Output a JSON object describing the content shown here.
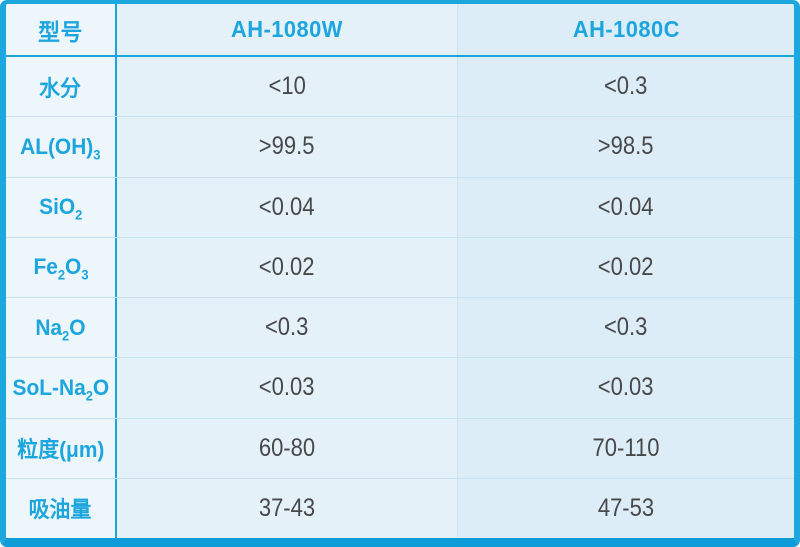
{
  "colors": {
    "accent_cyan": "#1ca7de",
    "bottom_border": "#0e9cd8",
    "header_text": "#1ca6dd",
    "label_text": "#1ca6dd",
    "value_text": "#48484a",
    "col1_bg": "#ecf6fb",
    "col2_bg": "#e4f1f9",
    "col3_bg": "#dcedf7",
    "row_divider": "#c8e2ef",
    "light_column_divider": "#cfe6f2"
  },
  "table": {
    "header": {
      "model_label": "型号",
      "columns": [
        "AH-1080W",
        "AH-1080C"
      ]
    },
    "rows": [
      {
        "label": [
          {
            "t": "水分"
          }
        ],
        "values": [
          "<10",
          "<0.3"
        ]
      },
      {
        "label": [
          {
            "t": "AL(OH)"
          },
          {
            "t": "3",
            "sub": true
          }
        ],
        "values": [
          ">99.5",
          ">98.5"
        ]
      },
      {
        "label": [
          {
            "t": "SiO"
          },
          {
            "t": "2",
            "sub": true
          }
        ],
        "values": [
          "<0.04",
          "<0.04"
        ]
      },
      {
        "label": [
          {
            "t": "Fe"
          },
          {
            "t": "2",
            "sub": true
          },
          {
            "t": "O"
          },
          {
            "t": "3",
            "sub": true
          }
        ],
        "values": [
          "<0.02",
          "<0.02"
        ]
      },
      {
        "label": [
          {
            "t": "Na"
          },
          {
            "t": "2",
            "sub": true
          },
          {
            "t": "O"
          }
        ],
        "values": [
          "<0.3",
          "<0.3"
        ]
      },
      {
        "label": [
          {
            "t": "SoL-Na"
          },
          {
            "t": "2",
            "sub": true
          },
          {
            "t": "O"
          }
        ],
        "values": [
          "<0.03",
          "<0.03"
        ]
      },
      {
        "label": [
          {
            "t": "粒度(μm)"
          }
        ],
        "values": [
          "60-80",
          "70-110"
        ]
      },
      {
        "label": [
          {
            "t": "吸油量"
          }
        ],
        "values": [
          "37-43",
          "47-53"
        ]
      }
    ]
  },
  "chart_data": {
    "type": "table",
    "title": "",
    "columns": [
      "型号",
      "AH-1080W",
      "AH-1080C"
    ],
    "rows": [
      [
        "水分",
        "<10",
        "<0.3"
      ],
      [
        "AL(OH)₃",
        ">99.5",
        ">98.5"
      ],
      [
        "SiO₂",
        "<0.04",
        "<0.04"
      ],
      [
        "Fe₂O₃",
        "<0.02",
        "<0.02"
      ],
      [
        "Na₂O",
        "<0.3",
        "<0.3"
      ],
      [
        "SoL-Na₂O",
        "<0.03",
        "<0.03"
      ],
      [
        "粒度(μm)",
        "60-80",
        "70-110"
      ],
      [
        "吸油量",
        "37-43",
        "47-53"
      ]
    ]
  }
}
